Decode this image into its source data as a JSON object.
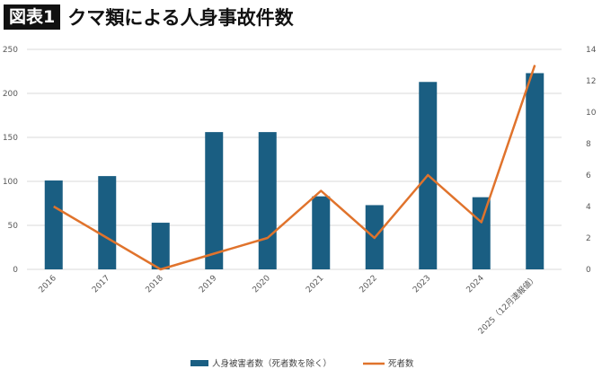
{
  "header": {
    "badge": "図表1",
    "title": "クマ類による人身事故件数"
  },
  "chart_data": {
    "type": "bar+line",
    "title": "クマ類による人身事故件数",
    "categories": [
      "2016",
      "2017",
      "2018",
      "2019",
      "2020",
      "2021",
      "2022",
      "2023",
      "2024",
      "2025（12月速報値）"
    ],
    "series": [
      {
        "name": "人身被害者数（死者数を除く）",
        "type": "bar",
        "axis": "left",
        "color": "#1a5e82",
        "values": [
          101,
          106,
          53,
          156,
          156,
          83,
          73,
          213,
          82,
          223
        ]
      },
      {
        "name": "死者数",
        "type": "line",
        "axis": "right",
        "color": "#e0732c",
        "values": [
          4,
          2,
          0,
          1,
          2,
          5,
          2,
          6,
          3,
          13
        ]
      }
    ],
    "y_left": {
      "range": [
        0,
        250
      ],
      "ticks": [
        0,
        50,
        100,
        150,
        200,
        250
      ]
    },
    "y_right": {
      "range": [
        0,
        14
      ],
      "ticks": [
        0,
        2,
        4,
        6,
        8,
        10,
        12,
        14
      ]
    },
    "grid": true,
    "legend": "bottom"
  }
}
